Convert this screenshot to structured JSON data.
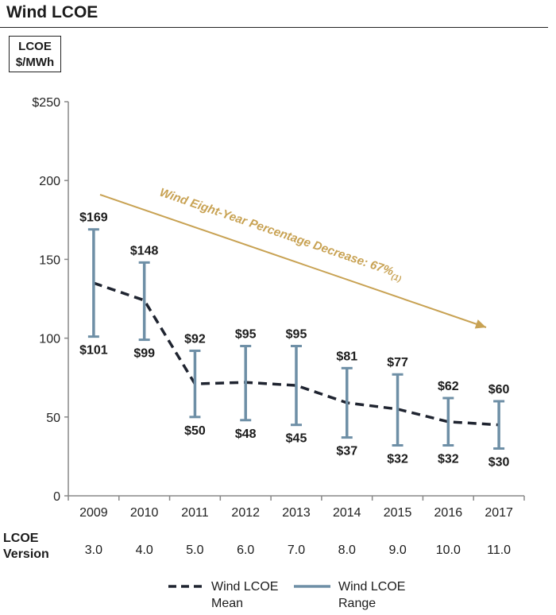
{
  "header": {
    "title": "Wind LCOE",
    "unit_line1": "LCOE",
    "unit_line2": "$/MWh"
  },
  "colors": {
    "range": "#6e8fa6",
    "mean": "#1f2430",
    "annotation": "#c8a253",
    "axis": "#888888"
  },
  "chart_data": {
    "type": "line",
    "title": "Wind LCOE",
    "ylabel": "LCOE $/MWh",
    "xlabel": "",
    "ylim": [
      0,
      250
    ],
    "yticks": [
      0,
      50,
      100,
      150,
      200,
      250
    ],
    "ytick_labels": [
      "0",
      "50",
      "100",
      "150",
      "200",
      "$250"
    ],
    "categories": [
      "2009",
      "2010",
      "2011",
      "2012",
      "2013",
      "2014",
      "2015",
      "2016",
      "2017"
    ],
    "series": [
      {
        "name": "Wind LCOE Mean",
        "style": "dashed",
        "values": [
          135,
          124,
          71,
          72,
          70,
          59,
          55,
          47,
          45
        ]
      },
      {
        "name": "Wind LCOE Range High",
        "values": [
          169,
          148,
          92,
          95,
          95,
          81,
          77,
          62,
          60
        ]
      },
      {
        "name": "Wind LCOE Range Low",
        "values": [
          101,
          99,
          50,
          48,
          45,
          37,
          32,
          32,
          30
        ]
      }
    ],
    "high_labels": [
      "$169",
      "$148",
      "$92",
      "$95",
      "$95",
      "$81",
      "$77",
      "$62",
      "$60"
    ],
    "low_labels": [
      "$101",
      "$99",
      "$50",
      "$48",
      "$45",
      "$37",
      "$32",
      "$32",
      "$30"
    ],
    "annotation": {
      "text": "Wind Eight-Year Percentage Decrease: 67%",
      "footnote": "(1)"
    }
  },
  "versions": {
    "label_line1": "LCOE",
    "label_line2": "Version",
    "values": [
      "3.0",
      "4.0",
      "5.0",
      "6.0",
      "7.0",
      "8.0",
      "9.0",
      "10.0",
      "11.0"
    ]
  },
  "legend": {
    "mean_line1": "Wind LCOE",
    "mean_line2": "Mean",
    "range_line1": "Wind LCOE",
    "range_line2": "Range"
  }
}
